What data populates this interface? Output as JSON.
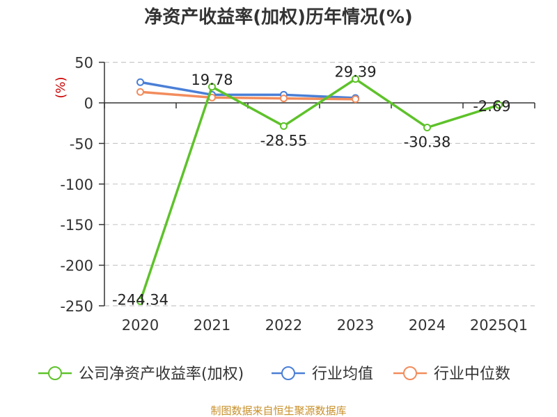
{
  "chart_data": {
    "type": "line",
    "title": "净资产收益率(加权)历年情况(%)",
    "ylabel": "(%)",
    "xlabel": "",
    "categories": [
      "2020",
      "2021",
      "2022",
      "2023",
      "2024",
      "2025Q1"
    ],
    "ylim": [
      -250,
      50
    ],
    "yticks": [
      50,
      0,
      -50,
      -100,
      -150,
      -200,
      -250
    ],
    "grid": true,
    "legend_position": "bottom",
    "series": [
      {
        "name": "公司净资产收益率(加权)",
        "color": "#5ec22a",
        "values": [
          -244.34,
          19.78,
          -28.55,
          29.39,
          -30.38,
          -2.69
        ],
        "labels": [
          "-244.34",
          "19.78",
          "-28.55",
          "29.39",
          "-30.38",
          "-2.69"
        ]
      },
      {
        "name": "行业均值",
        "color": "#4a7fd6",
        "values": [
          25.5,
          10,
          10,
          6,
          null,
          null
        ]
      },
      {
        "name": "行业中位数",
        "color": "#f28c5c",
        "values": [
          13.5,
          6.5,
          5.5,
          4.5,
          null,
          null
        ]
      }
    ]
  },
  "unit_color": "#cc0000",
  "source_text": "制图数据来自恒生聚源数据库",
  "source_color": "#c8902a"
}
